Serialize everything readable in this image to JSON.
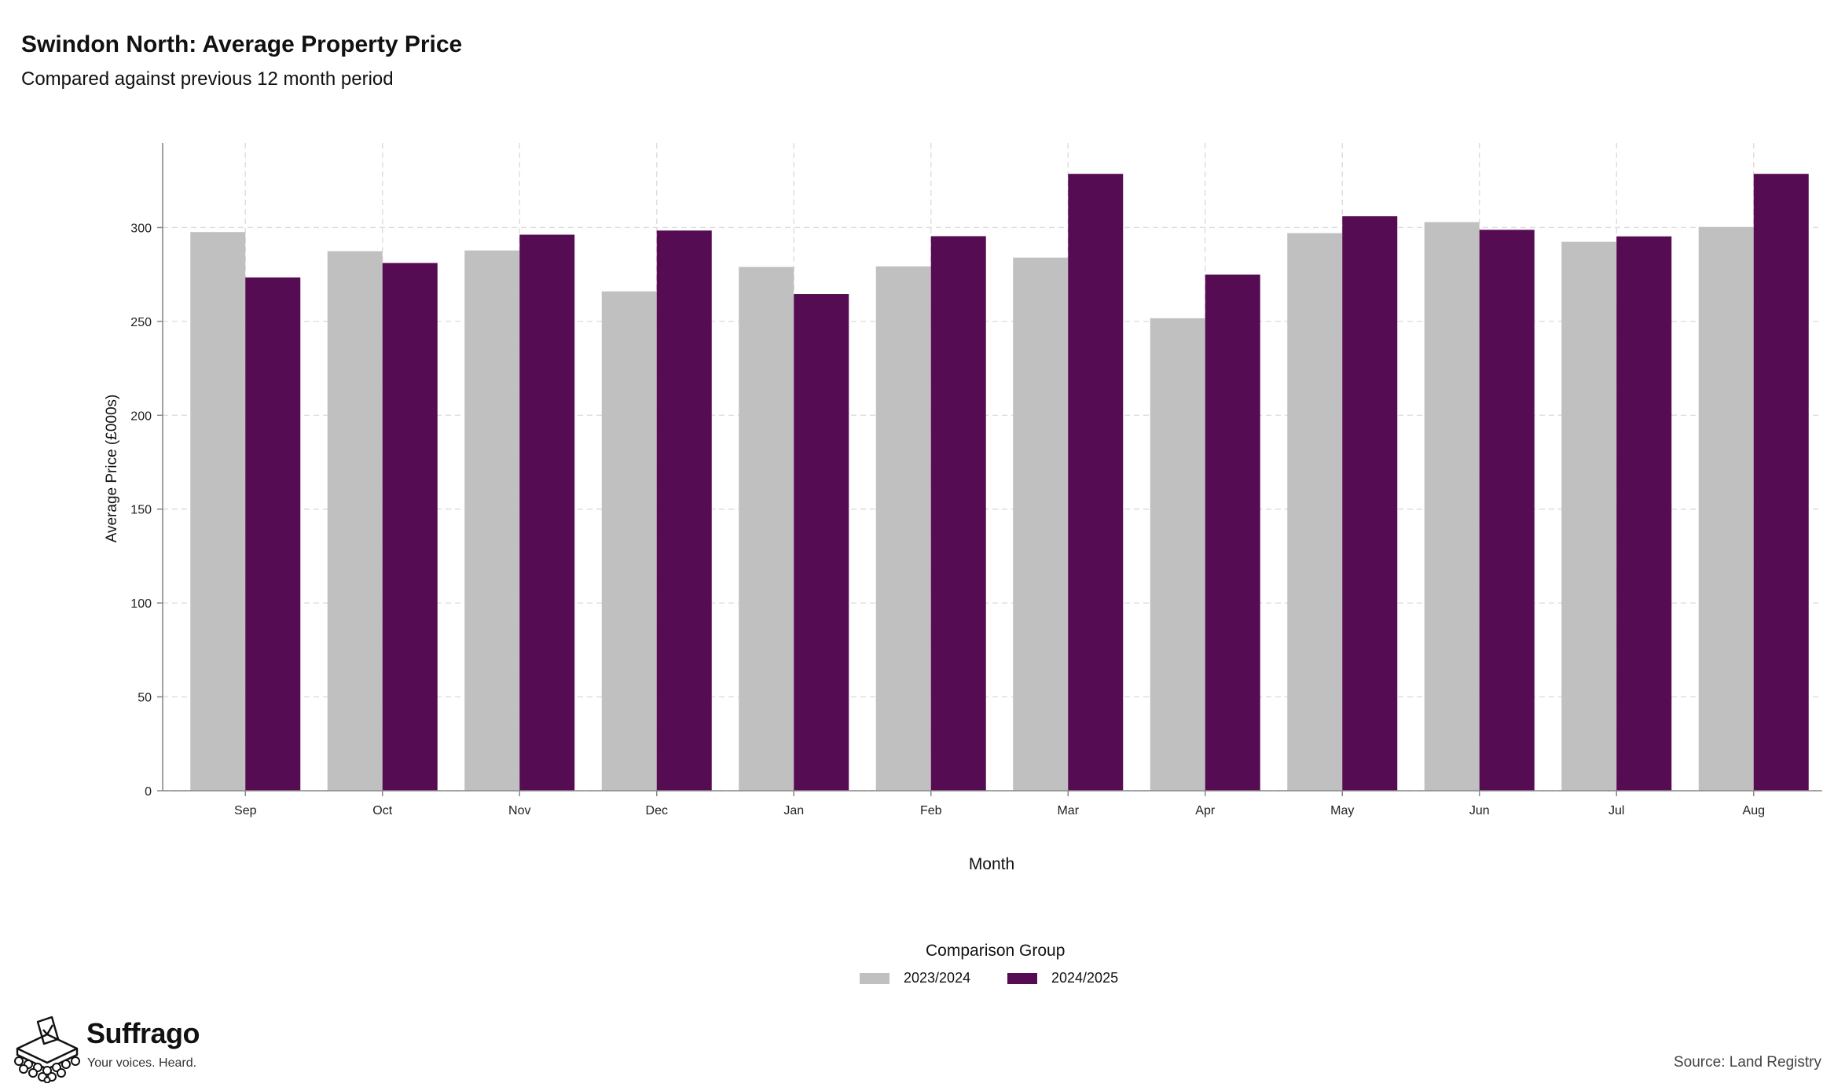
{
  "header": {
    "title": "Swindon North: Average Property Price",
    "subtitle": "Compared against previous 12 month period"
  },
  "chart_data": {
    "type": "bar",
    "categories": [
      "Sep",
      "Oct",
      "Nov",
      "Dec",
      "Jan",
      "Feb",
      "Mar",
      "Apr",
      "May",
      "Jun",
      "Jul",
      "Aug"
    ],
    "series": [
      {
        "name": "2023/2024",
        "color": "#c0c0c0",
        "values": [
          297.6,
          287.4,
          287.8,
          266.0,
          279.0,
          279.3,
          284.0,
          251.7,
          297.0,
          302.9,
          292.4,
          300.3
        ]
      },
      {
        "name": "2024/2025",
        "color": "#560c52",
        "values": [
          273.4,
          281.1,
          296.2,
          298.4,
          264.6,
          295.4,
          328.6,
          274.9,
          306.0,
          298.8,
          295.3,
          328.6
        ]
      }
    ],
    "xlabel": "Month",
    "ylabel": "Average Price (£000s)",
    "ylim": [
      0,
      345
    ],
    "yticks": [
      0,
      50,
      100,
      150,
      200,
      250,
      300
    ],
    "grid": true,
    "legend": {
      "title": "Comparison Group",
      "position": "bottom"
    }
  },
  "footer": {
    "brand_name": "Suffrago",
    "brand_tagline": "Your voices. Heard.",
    "source": "Source: Land Registry"
  }
}
